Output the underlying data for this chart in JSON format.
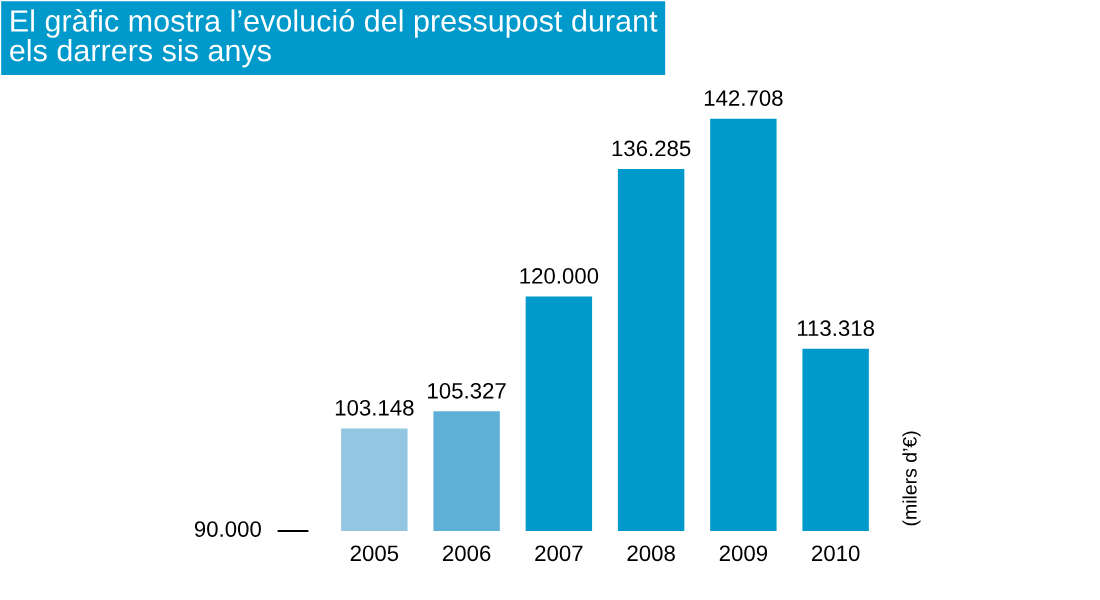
{
  "chart_data": {
    "type": "bar",
    "title": "El gràfic mostra l’evolució del pressupost durant\nels darrers sis anys",
    "ylabel": "(milers d’€)",
    "categories": [
      "2005",
      "2006",
      "2007",
      "2008",
      "2009",
      "2010"
    ],
    "values": [
      103148,
      105327,
      120000,
      136285,
      142708,
      113318
    ],
    "value_labels": [
      "103.148",
      "105.327",
      "120.000",
      "136.285",
      "142.708",
      "113.318"
    ],
    "colors": [
      "#93c6e1",
      "#5eb0d7",
      "#0099cc",
      "#0099cc",
      "#0099cc",
      "#0099cc"
    ],
    "annotations": [
      "90.000"
    ],
    "grid": false
  }
}
